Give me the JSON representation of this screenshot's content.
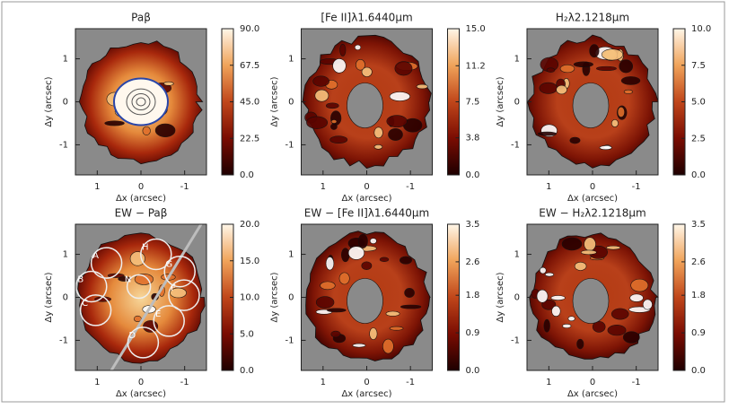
{
  "chart_data": [
    {
      "type": "heatmap",
      "title": "Paβ",
      "xlabel": "Δx (arcsec)",
      "ylabel": "Δy (arcsec)",
      "xlim": [
        1.5,
        -1.5
      ],
      "ylim": [
        -1.7,
        1.7
      ],
      "xticks": [
        1,
        0,
        -1
      ],
      "yticks": [
        -1,
        0,
        1
      ],
      "colorbar": {
        "clim": [
          0,
          90
        ],
        "ticks": [
          {
            "value": 0,
            "label": "0.0"
          },
          {
            "value": 22.5,
            "label": "22.5"
          },
          {
            "value": 45,
            "label": "45.0"
          },
          {
            "value": 67.5,
            "label": "67.5"
          },
          {
            "value": 90,
            "label": "90.0"
          }
        ]
      }
    },
    {
      "type": "heatmap",
      "title": "[Fe II]λ1.6440μm",
      "xlabel": "Δx (arcsec)",
      "ylabel": "Δy (arcsec)",
      "xlim": [
        1.5,
        -1.5
      ],
      "ylim": [
        -1.7,
        1.7
      ],
      "xticks": [
        1,
        0,
        -1
      ],
      "yticks": [
        -1,
        0,
        1
      ],
      "colorbar": {
        "clim": [
          0,
          15
        ],
        "ticks": [
          {
            "value": 0,
            "label": "0.0"
          },
          3.8,
          7.5,
          11.2,
          {
            "value": 15,
            "label": "15.0"
          }
        ]
      }
    },
    {
      "type": "heatmap",
      "title": "H₂λ2.1218μm",
      "xlabel": "Δx (arcsec)",
      "ylabel": "Δy (arcsec)",
      "xlim": [
        1.5,
        -1.5
      ],
      "ylim": [
        -1.7,
        1.7
      ],
      "xticks": [
        1,
        0,
        -1
      ],
      "yticks": [
        -1,
        0,
        1
      ],
      "colorbar": {
        "clim": [
          0,
          10
        ],
        "ticks": [
          {
            "value": 0,
            "label": "0.0"
          },
          2.5,
          {
            "value": 5,
            "label": "5.0"
          },
          7.5,
          {
            "value": 10,
            "label": "10.0"
          }
        ]
      }
    },
    {
      "type": "heatmap",
      "title": "EW − Paβ",
      "xlabel": "Δx (arcsec)",
      "ylabel": "Δy (arcsec)",
      "xlim": [
        1.5,
        -1.5
      ],
      "ylim": [
        -1.7,
        1.7
      ],
      "xticks": [
        1,
        0,
        -1
      ],
      "yticks": [
        -1,
        0,
        1
      ],
      "colorbar": {
        "clim": [
          0,
          20
        ],
        "ticks": [
          {
            "value": 0,
            "label": "0.0"
          },
          {
            "value": 5,
            "label": "5.0"
          },
          {
            "value": 10,
            "label": "10.0"
          },
          {
            "value": 15,
            "label": "15.0"
          },
          {
            "value": 20,
            "label": "20.0"
          }
        ]
      },
      "annotations": [
        "A",
        "B",
        "C",
        "D",
        "E",
        "F",
        "G",
        "H",
        "N"
      ]
    },
    {
      "type": "heatmap",
      "title": "EW − [Fe II]λ1.6440μm",
      "xlabel": "Δx (arcsec)",
      "ylabel": "Δy (arcsec)",
      "xlim": [
        1.5,
        -1.5
      ],
      "ylim": [
        -1.7,
        1.7
      ],
      "xticks": [
        1,
        0,
        -1
      ],
      "yticks": [
        -1,
        0,
        1
      ],
      "colorbar": {
        "clim": [
          0,
          3.5
        ],
        "ticks": [
          {
            "value": 0,
            "label": "0.0"
          },
          0.9,
          1.8,
          2.6,
          3.5
        ]
      }
    },
    {
      "type": "heatmap",
      "title": "EW − H₂λ2.1218μm",
      "xlabel": "Δx (arcsec)",
      "ylabel": "Δy (arcsec)",
      "xlim": [
        1.5,
        -1.5
      ],
      "ylim": [
        -1.7,
        1.7
      ],
      "xticks": [
        1,
        0,
        -1
      ],
      "yticks": [
        -1,
        0,
        1
      ],
      "colorbar": {
        "clim": [
          0,
          3.5
        ],
        "ticks": [
          {
            "value": 0,
            "label": "0.0"
          },
          0.9,
          1.8,
          2.6,
          3.5
        ]
      }
    }
  ]
}
